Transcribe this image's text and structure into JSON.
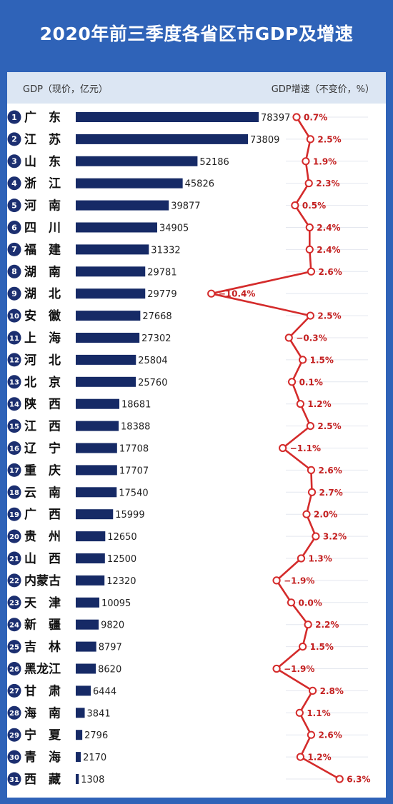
{
  "title": "2020年前三季度各省区市GDP及增速",
  "header": {
    "left": "GDP（现价，亿元）",
    "right": "GDP增速（不变价，%）"
  },
  "colors": {
    "background": "#2f63b8",
    "bar": "#162a66",
    "line": "#d42b2b",
    "rank_badge": "#1c2f70"
  },
  "chart_data": {
    "type": "bar",
    "categories": [
      "广　东",
      "江　苏",
      "山　东",
      "浙　江",
      "河　南",
      "四　川",
      "福　建",
      "湖　南",
      "湖　北",
      "安　徽",
      "上　海",
      "河　北",
      "北　京",
      "陕　西",
      "江　西",
      "辽　宁",
      "重　庆",
      "云　南",
      "广　西",
      "贵　州",
      "山　西",
      "内蒙古",
      "天　津",
      "新　疆",
      "吉　林",
      "黑龙江",
      "甘　肃",
      "海　南",
      "宁　夏",
      "青　海",
      "西　藏"
    ],
    "ranks": [
      "1",
      "2",
      "3",
      "4",
      "5",
      "6",
      "7",
      "8",
      "9",
      "10",
      "11",
      "12",
      "13",
      "14",
      "15",
      "16",
      "17",
      "18",
      "19",
      "20",
      "21",
      "22",
      "23",
      "24",
      "25",
      "26",
      "27",
      "28",
      "29",
      "30",
      "31"
    ],
    "series": [
      {
        "type": "bar",
        "values": [
          78397,
          73809,
          52186,
          45826,
          39877,
          34905,
          31332,
          29781,
          29779,
          27668,
          27302,
          25804,
          25760,
          18681,
          18388,
          17708,
          17707,
          17540,
          15999,
          12650,
          12500,
          12320,
          10095,
          9820,
          8797,
          8620,
          6444,
          3841,
          2796,
          2170,
          1308
        ],
        "labels": [
          "78397",
          "73809",
          "52186",
          "45826",
          "39877",
          "34905",
          "31332",
          "29781",
          "29779",
          "27668",
          "27302",
          "25804",
          "25760",
          "18681",
          "18388",
          "17708",
          "17707",
          "17540",
          "15999",
          "12650",
          "12500",
          "12320",
          "10095",
          "9820",
          "8797",
          "8620",
          "6444",
          "3841",
          "2796",
          "2170",
          "1308"
        ]
      },
      {
        "type": "line",
        "values": [
          0.7,
          2.5,
          1.9,
          2.3,
          0.5,
          2.4,
          2.4,
          2.6,
          -10.4,
          2.5,
          -0.3,
          1.5,
          0.1,
          1.2,
          2.5,
          -1.1,
          2.6,
          2.7,
          2.0,
          3.2,
          1.3,
          -1.9,
          0.0,
          2.2,
          1.5,
          -1.9,
          2.8,
          1.1,
          2.6,
          1.2,
          6.3
        ],
        "labels": [
          "0.7%",
          "2.5%",
          "1.9%",
          "2.3%",
          "0.5%",
          "2.4%",
          "2.4%",
          "2.6%",
          "−10.4%",
          "2.5%",
          "−0.3%",
          "1.5%",
          "0.1%",
          "1.2%",
          "2.5%",
          "−1.1%",
          "2.6%",
          "2.7%",
          "2.0%",
          "3.2%",
          "1.3%",
          "−1.9%",
          "0.0%",
          "2.2%",
          "1.5%",
          "−1.9%",
          "2.8%",
          "1.1%",
          "2.6%",
          "1.2%",
          "6.3%"
        ]
      }
    ],
    "legend": "none",
    "grid": true
  }
}
